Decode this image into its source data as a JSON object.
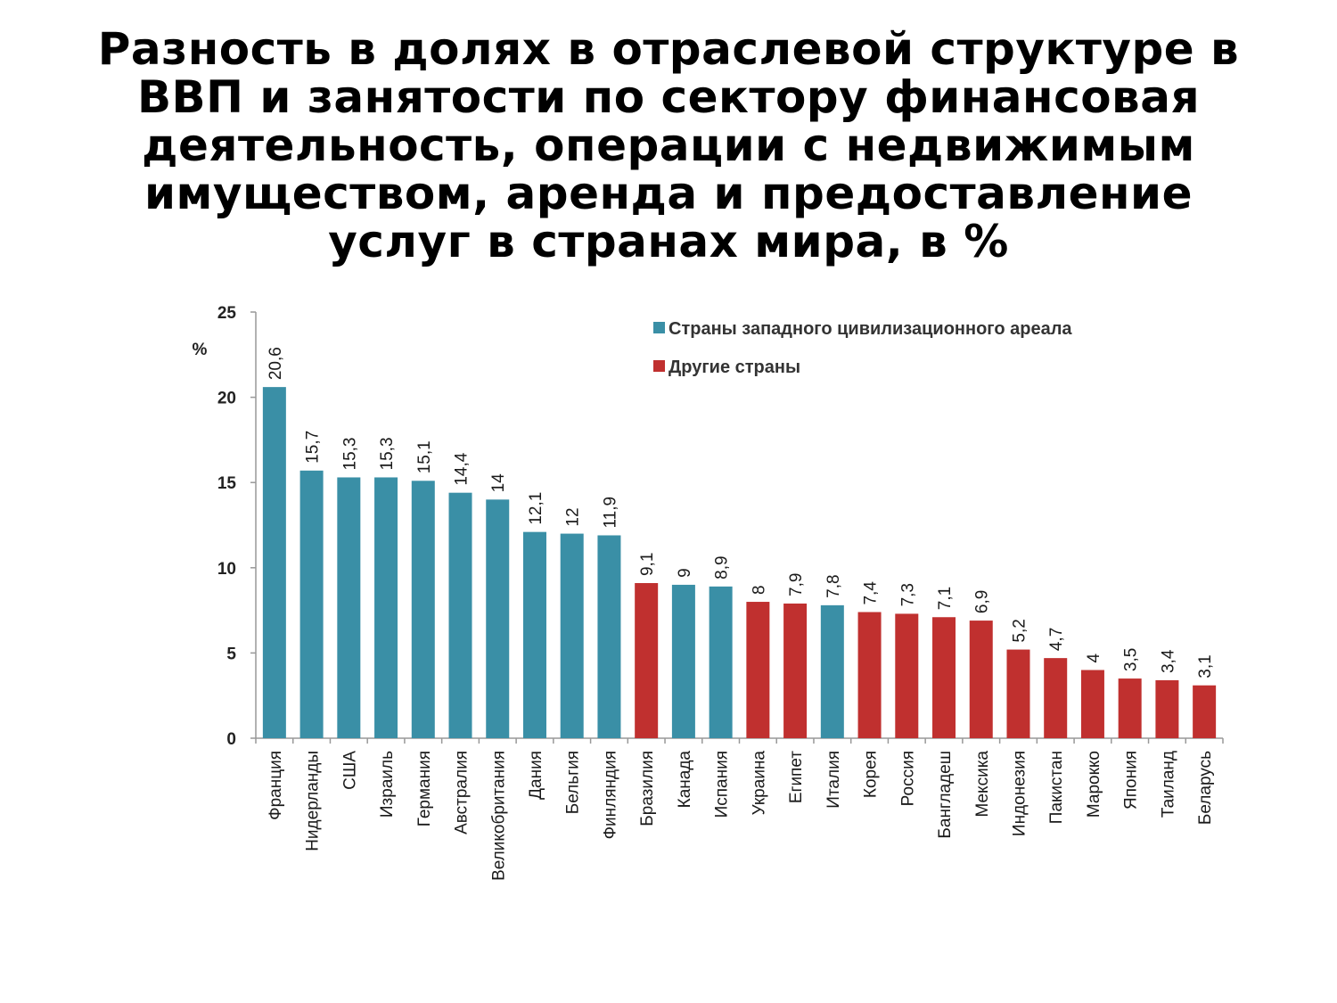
{
  "title_lines": [
    "Разность в долях в отраслевой структуре в",
    "ВВП и занятости по сектору финансовая",
    "деятельность, операции с недвижимым",
    "имуществом, аренда и предоставление",
    "услуг в странах мира, в %"
  ],
  "chart_data": {
    "type": "bar",
    "title": "Разность в долях в отраслевой структуре в ВВП и занятости по сектору финансовая деятельность, операции с недвижимым имуществом, аренда и предоставление услуг в странах мира, в %",
    "ylabel": "%",
    "xlabel": "",
    "ylim": [
      0,
      25
    ],
    "yticks": [
      0,
      5,
      10,
      15,
      20,
      25
    ],
    "grid": false,
    "legend_position": "top-right",
    "colors": {
      "western": "#3a8fa6",
      "other": "#c0302f"
    },
    "legend": [
      {
        "group": "western",
        "label": "Страны западного цивилизационного ареала"
      },
      {
        "group": "other",
        "label": "Другие страны"
      }
    ],
    "categories": [
      "Франция",
      "Нидерланды",
      "США",
      "Израиль",
      "Германия",
      "Австралия",
      "Великобритания",
      "Дания",
      "Бельгия",
      "Финляндия",
      "Бразилия",
      "Канада",
      "Испания",
      "Украина",
      "Египет",
      "Италия",
      "Корея",
      "Россия",
      "Бангладеш",
      "Мексика",
      "Индонезия",
      "Пакистан",
      "Марокко",
      "Япония",
      "Таиланд",
      "Беларусь"
    ],
    "values": [
      20.6,
      15.7,
      15.3,
      15.3,
      15.1,
      14.4,
      14,
      12.1,
      12,
      11.9,
      9.1,
      9,
      8.9,
      8,
      7.9,
      7.8,
      7.4,
      7.3,
      7.1,
      6.9,
      5.2,
      4.7,
      4,
      3.5,
      3.4,
      3.1
    ],
    "value_labels": [
      "20,6",
      "15,7",
      "15,3",
      "15,3",
      "15,1",
      "14,4",
      "14",
      "12,1",
      "12",
      "11,9",
      "9,1",
      "9",
      "8,9",
      "8",
      "7,9",
      "7,8",
      "7,4",
      "7,3",
      "7,1",
      "6,9",
      "5,2",
      "4,7",
      "4",
      "3,5",
      "3,4",
      "3,1"
    ],
    "groups": [
      "western",
      "western",
      "western",
      "western",
      "western",
      "western",
      "western",
      "western",
      "western",
      "western",
      "other",
      "western",
      "western",
      "other",
      "other",
      "western",
      "other",
      "other",
      "other",
      "other",
      "other",
      "other",
      "other",
      "other",
      "other",
      "other"
    ]
  }
}
